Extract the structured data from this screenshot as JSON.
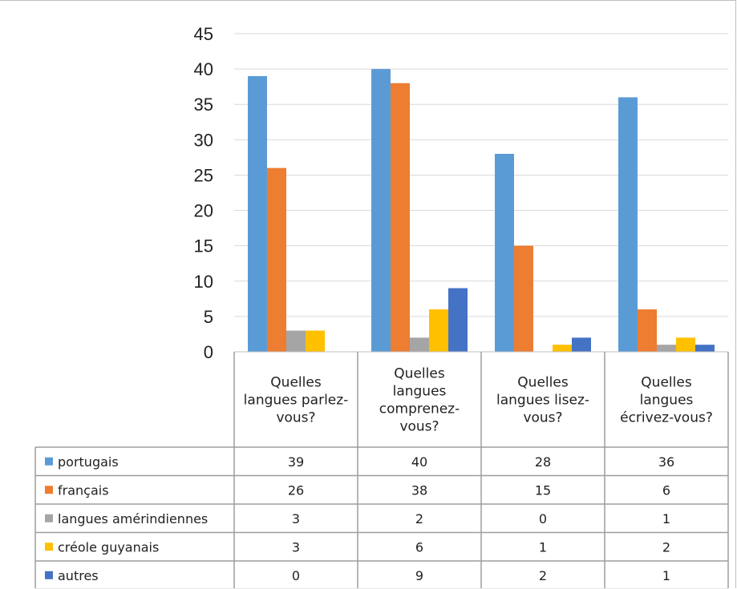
{
  "chart_data": {
    "type": "bar",
    "title": "",
    "xlabel": "",
    "ylabel": "",
    "ylim": [
      0,
      45
    ],
    "yticks": [
      0,
      5,
      10,
      15,
      20,
      25,
      30,
      35,
      40,
      45
    ],
    "grid": true,
    "legend": "data-table",
    "categories": [
      [
        "Quelles",
        "langues parlez-",
        "vous?"
      ],
      [
        "Quelles",
        "langues",
        "comprenez-",
        "vous?"
      ],
      [
        "Quelles",
        "langues lisez-",
        "vous?"
      ],
      [
        "Quelles",
        "langues",
        "écrivez-vous?"
      ]
    ],
    "series": [
      {
        "name": "portugais",
        "color": "#5b9bd5",
        "values": [
          39,
          40,
          28,
          36
        ]
      },
      {
        "name": "français",
        "color": "#ed7d31",
        "values": [
          26,
          38,
          15,
          6
        ]
      },
      {
        "name": "langues amérindiennes",
        "color": "#a5a5a5",
        "values": [
          3,
          2,
          0,
          1
        ]
      },
      {
        "name": "créole guyanais",
        "color": "#ffc000",
        "values": [
          3,
          6,
          1,
          2
        ]
      },
      {
        "name": "autres",
        "color": "#4472c4",
        "values": [
          0,
          9,
          2,
          1
        ]
      }
    ]
  }
}
